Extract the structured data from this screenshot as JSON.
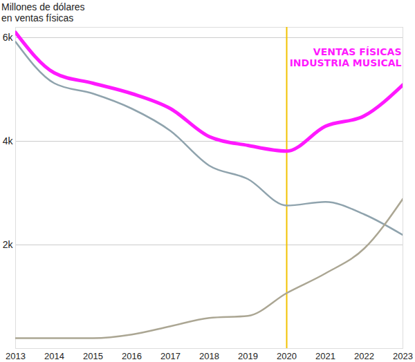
{
  "chart_data": {
    "type": "line",
    "y_label": "Millones de dólares\nen ventas físicas",
    "annotation": [
      "VENTAS FÍSICAS",
      "INDUSTRIA MUSICAL"
    ],
    "x": [
      2013,
      2014,
      2015,
      2016,
      2017,
      2018,
      2019,
      2020,
      2021,
      2022,
      2023
    ],
    "series": [
      {
        "color": "#8fa3ad",
        "values": [
          5920,
          5120,
          4920,
          4630,
          4200,
          3530,
          3270,
          2760,
          2830,
          2590,
          2190
        ]
      },
      {
        "color": "#aba693",
        "values": [
          200,
          200,
          200,
          270,
          430,
          590,
          630,
          1070,
          1450,
          1930,
          2890
        ]
      },
      {
        "color": "#ff19ff",
        "values": [
          6100,
          5320,
          5120,
          4920,
          4630,
          4090,
          3920,
          3810,
          4290,
          4490,
          5090
        ]
      }
    ],
    "vertical_line": {
      "x": 2020,
      "color": "#f2c200"
    },
    "xlim": [
      2013,
      2023
    ],
    "xticks": [
      2013,
      2014,
      2015,
      2016,
      2017,
      2018,
      2019,
      2020,
      2021,
      2022,
      2023
    ],
    "ylim": [
      0,
      6200
    ],
    "yticks": [
      {
        "value": 2000,
        "label": "2k"
      },
      {
        "value": 4000,
        "label": "4k"
      },
      {
        "value": 6000,
        "label": "6k"
      }
    ],
    "grid": true
  }
}
